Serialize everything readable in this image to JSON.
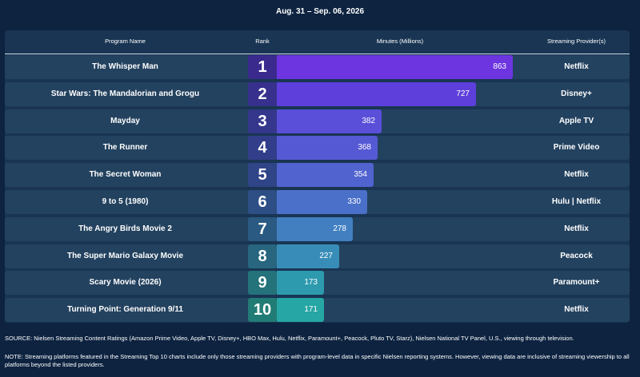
{
  "date_range": "Aug. 31 – Sep. 06, 2026",
  "headers": {
    "program": "Program Name",
    "rank": "Rank",
    "minutes": "Minutes (Millions)",
    "provider": "Streaming Provider(s)"
  },
  "chart_data": {
    "type": "bar",
    "orientation": "horizontal",
    "categories": [
      "The Whisper Man",
      "Star Wars: The Mandalorian and Grogu",
      "Mayday",
      "The Runner",
      "The Secret Woman",
      "9 to 5 (1980)",
      "The Angry Birds Movie 2",
      "The Super Mario Galaxy Movie",
      "Scary Movie (2026)",
      "Turning Point: Generation 9/11"
    ],
    "ranks": [
      "1",
      "2",
      "3",
      "4",
      "5",
      "6",
      "7",
      "8",
      "9",
      "10"
    ],
    "values": [
      863,
      727,
      382,
      368,
      354,
      330,
      278,
      227,
      173,
      171
    ],
    "providers": [
      "Netflix",
      "Disney+",
      "Apple TV",
      "Prime Video",
      "Netflix",
      "Hulu | Netflix",
      "Netflix",
      "Peacock",
      "Paramount+",
      "Netflix"
    ],
    "bar_colors": [
      "#6c35e0",
      "#5e3fdb",
      "#5a4fd8",
      "#5659d4",
      "#5163cf",
      "#4a70c9",
      "#417fc1",
      "#388db8",
      "#2e9aae",
      "#26a6a4"
    ],
    "rank_colors": [
      "#3b2a8e",
      "#37308d",
      "#34378c",
      "#323e8a",
      "#2f4588",
      "#2d4f85",
      "#2a5a82",
      "#27667e",
      "#24727a",
      "#227c76"
    ],
    "xlim": [
      0,
      900
    ]
  },
  "source": "SOURCE: Nielsen Streaming Content Ratings (Amazon Prime Video, Apple TV, Disney+, HBO Max, Hulu, Netflix, Paramount+, Peacock, Pluto TV, Starz), Nielsen National TV Panel, U.S., viewing through television.",
  "note": "NOTE: Streaming platforms featured in the Streaming Top 10 charts include only those streaming providers with program-level data in specific Nielsen reporting systems. However, viewing data are inclusive of streaming viewership to all platforms beyond the listed providers."
}
